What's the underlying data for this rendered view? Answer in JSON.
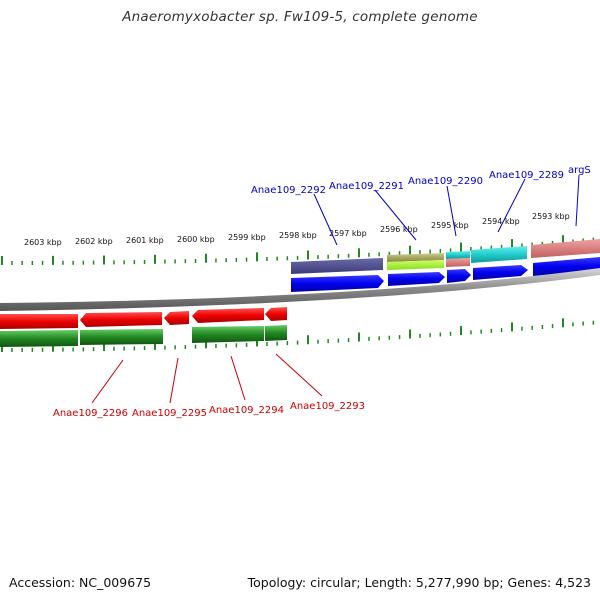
{
  "title": "Anaeromyxobacter sp. Fw109-5, complete genome",
  "footer": {
    "accession": "Accession: NC_009675",
    "summary": "Topology: circular; Length: 5,277,990 bp; Genes: 4,523"
  },
  "scale": {
    "unit": "kbp",
    "ticks": [
      "2603 kbp",
      "2602 kbp",
      "2601 kbp",
      "2600 kbp",
      "2599 kbp",
      "2598 kbp",
      "2597 kbp",
      "2596 kbp",
      "2595 kbp",
      "2594 kbp",
      "2593 kbp"
    ]
  },
  "genes_forward": [
    {
      "label": "Anae109_2292",
      "color": "#0000cc"
    },
    {
      "label": "Anae109_2291",
      "color": "#0000cc"
    },
    {
      "label": "Anae109_2290",
      "color": "#0000cc"
    },
    {
      "label": "Anae109_2289",
      "color": "#0000cc"
    },
    {
      "label": "argS",
      "color": "#0000cc"
    }
  ],
  "genes_reverse": [
    {
      "label": "Anae109_2296",
      "color": "#cc0000"
    },
    {
      "label": "Anae109_2295",
      "color": "#cc0000"
    },
    {
      "label": "Anae109_2294",
      "color": "#cc0000"
    },
    {
      "label": "Anae109_2293",
      "color": "#cc0000"
    }
  ],
  "colors": {
    "forward_cds": "#0000ee",
    "reverse_cds": "#ee0000",
    "backbone": "#888888",
    "tick": "#228822",
    "feature_purple": "#4a4a8a",
    "feature_olive": "#a8a860",
    "feature_cyan": "#22cccc",
    "feature_pink": "#e08080",
    "feature_green": "#228822"
  }
}
